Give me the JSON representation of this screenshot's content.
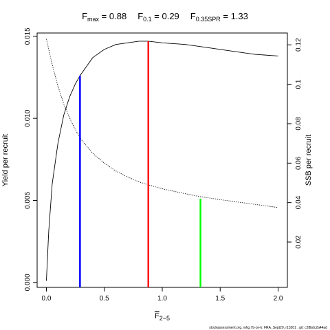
{
  "chart_data": {
    "type": "line",
    "title": {
      "fmax": {
        "label": "F",
        "sub": "max",
        "eq": " = 0.88"
      },
      "f01": {
        "label": "F",
        "sub": "0.1",
        "eq": " = 0.29"
      },
      "f35": {
        "label": "F",
        "sub": "0.35SPR",
        "eq": " = 1.33"
      }
    },
    "xlabel": {
      "main": "F",
      "sub": "2−5"
    },
    "ylabel_left": "Yield per recruit",
    "ylabel_right": "SSB per recruit",
    "xlim": [
      -0.08,
      2.08
    ],
    "ylim_left": [
      -0.0003,
      0.0152
    ],
    "ylim_right": [
      -0.003,
      0.126
    ],
    "x_ticks": [
      {
        "value": 0,
        "label": "0.0"
      },
      {
        "value": 0.5,
        "label": "0.5"
      },
      {
        "value": 1.0,
        "label": "1.0"
      },
      {
        "value": 1.5,
        "label": "1.5"
      },
      {
        "value": 2.0,
        "label": "2.0"
      }
    ],
    "y_left_ticks": [
      {
        "value": 0,
        "label": "0.000"
      },
      {
        "value": 0.005,
        "label": "0.005"
      },
      {
        "value": 0.01,
        "label": "0.010"
      },
      {
        "value": 0.015,
        "label": "0.015"
      }
    ],
    "y_right_ticks": [
      {
        "value": 0.02,
        "label": "0.02"
      },
      {
        "value": 0.04,
        "label": "0.04"
      },
      {
        "value": 0.06,
        "label": "0.06"
      },
      {
        "value": 0.08,
        "label": "0.08"
      },
      {
        "value": 0.1,
        "label": "0.1"
      },
      {
        "value": 0.12,
        "label": "0.12"
      }
    ],
    "series": [
      {
        "axis": "left",
        "style": "solid",
        "color": "#000000",
        "x": [
          0,
          0.02,
          0.05,
          0.1,
          0.15,
          0.2,
          0.25,
          0.29,
          0.35,
          0.4,
          0.5,
          0.6,
          0.7,
          0.8,
          0.88,
          1.0,
          1.2,
          1.4,
          1.6,
          1.8,
          2.0
        ],
        "y": [
          0.0001,
          0.0031,
          0.006,
          0.0085,
          0.0102,
          0.0113,
          0.0121,
          0.0126,
          0.0132,
          0.0137,
          0.0142,
          0.0145,
          0.0146,
          0.0147,
          0.0147,
          0.0146,
          0.0145,
          0.0143,
          0.0141,
          0.0139,
          0.0138
        ]
      },
      {
        "axis": "right",
        "style": "dotted",
        "color": "#000000",
        "x": [
          0,
          0.05,
          0.1,
          0.15,
          0.2,
          0.25,
          0.3,
          0.4,
          0.5,
          0.6,
          0.7,
          0.8,
          0.88,
          1.0,
          1.2,
          1.33,
          1.5,
          1.75,
          2.0
        ],
        "y": [
          0.123,
          0.11,
          0.099,
          0.09,
          0.083,
          0.077,
          0.072,
          0.065,
          0.06,
          0.056,
          0.053,
          0.0505,
          0.049,
          0.047,
          0.0445,
          0.043,
          0.0415,
          0.0395,
          0.0375
        ]
      }
    ],
    "reference_lines": [
      {
        "name": "F0.1",
        "x": 0.29,
        "y_left": 0.0126,
        "color": "#0000ff"
      },
      {
        "name": "Fmax",
        "x": 0.88,
        "y_left": 0.0147,
        "color": "#ff0000"
      },
      {
        "name": "F0.35SPR",
        "x": 1.33,
        "y_left": 0.0051,
        "color": "#00ff00"
      }
    ],
    "grid": false
  },
  "footer": "stockassessment.org, whg.7b-ce-k: FRA_Sept20, r13201 , git: c28bdc2a44ad"
}
